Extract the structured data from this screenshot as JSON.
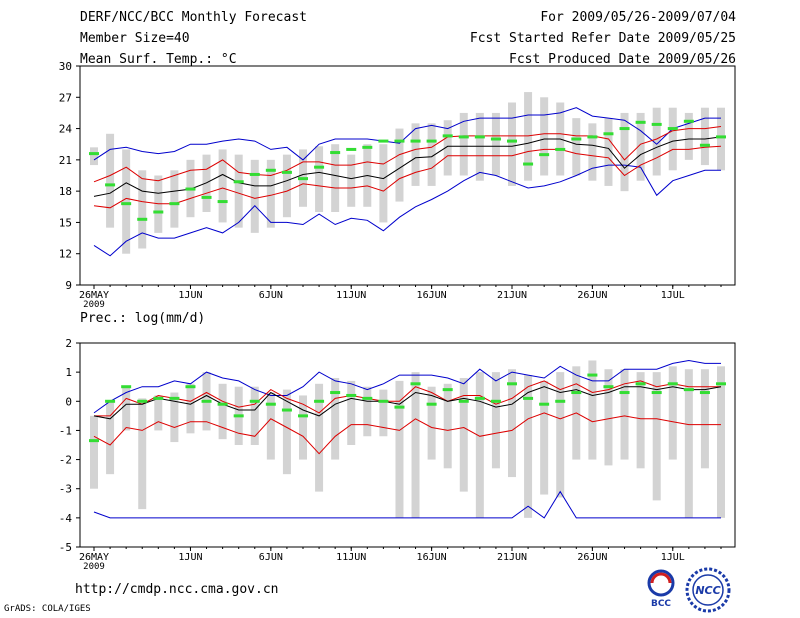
{
  "header": {
    "title": "DERF/NCC/BCC Monthly Forecast",
    "member": "Member Size=40",
    "variable": "Mean Surf. Temp.: °C",
    "period": "For 2009/05/26-2009/07/04",
    "refer": "Fcst Started Refer Date 2009/05/25",
    "produced": "Fcst Produced Date 2009/05/26"
  },
  "footer": {
    "url": "http://cmdp.ncc.cma.gov.cn",
    "grads": "GrADS: COLA/IGES"
  },
  "logos": {
    "bcc": "BCC",
    "ncc": "NCC"
  },
  "colors": {
    "max_line": "#0000cc",
    "pct_line": "#dd0000",
    "mean_line": "#000000",
    "obs": "#33dd33",
    "box": "#d3d3d3"
  },
  "chart_data": [
    {
      "type": "box-line",
      "title": "Mean Surf. Temp.: °C",
      "xtick_labels": [
        "26MAY\n2009",
        "1JUN",
        "6JUN",
        "11JUN",
        "16JUN",
        "21JUN",
        "26JUN",
        "1JUL"
      ],
      "xtick_days": [
        0,
        6,
        11,
        16,
        21,
        26,
        31,
        36
      ],
      "ylim": [
        9,
        30
      ],
      "yticks": [
        9,
        12,
        15,
        18,
        21,
        24,
        27,
        30
      ],
      "days": 40,
      "series": [
        {
          "name": "max",
          "values": [
            12.8,
            11.8,
            13.2,
            14.0,
            13.5,
            13.5,
            14.0,
            14.5,
            14.0,
            15.0,
            16.6,
            15.0,
            15.0,
            14.8,
            15.8,
            14.8,
            15.4,
            15.2,
            14.2,
            15.5,
            16.5,
            17.2,
            18.0,
            19.0,
            19.8,
            19.5,
            18.9,
            18.3,
            18.5,
            18.9,
            19.5,
            20.2,
            20.5,
            20.5,
            20.3,
            17.6,
            19.0,
            19.5,
            20.0,
            20.0
          ]
        },
        {
          "name": "upper",
          "values": [
            21.0,
            22.0,
            22.2,
            21.8,
            21.6,
            21.8,
            22.5,
            22.5,
            22.8,
            23.0,
            22.8,
            22.0,
            22.2,
            21.0,
            22.5,
            23.0,
            23.0,
            23.0,
            22.8,
            22.6,
            24.0,
            24.3,
            24.0,
            24.7,
            25.0,
            25.0,
            25.0,
            25.3,
            25.3,
            25.5,
            26.0,
            25.2,
            25.0,
            24.8,
            23.8,
            22.5,
            24.0,
            24.5,
            25.0,
            25.0
          ]
        },
        {
          "name": "p80",
          "values": [
            18.9,
            19.5,
            20.3,
            19.2,
            19.0,
            19.5,
            20.0,
            20.1,
            21.0,
            19.8,
            19.6,
            19.5,
            20.0,
            20.8,
            20.8,
            20.5,
            20.5,
            20.8,
            20.6,
            21.5,
            22.0,
            22.2,
            23.2,
            23.3,
            23.3,
            23.3,
            23.3,
            23.3,
            23.5,
            23.5,
            23.3,
            23.3,
            23.0,
            21.0,
            22.5,
            23.0,
            23.8,
            24.0,
            24.0,
            24.2
          ]
        },
        {
          "name": "mean",
          "values": [
            17.5,
            17.8,
            18.8,
            18.0,
            17.8,
            18.0,
            18.2,
            18.8,
            19.6,
            18.8,
            18.5,
            18.5,
            19.0,
            19.6,
            19.8,
            19.5,
            19.2,
            19.5,
            19.2,
            20.2,
            21.2,
            21.3,
            22.3,
            22.3,
            22.3,
            22.3,
            22.3,
            22.6,
            23.0,
            23.0,
            22.5,
            22.4,
            22.1,
            20.2,
            21.5,
            22.2,
            22.8,
            23.0,
            23.0,
            23.2
          ]
        },
        {
          "name": "p20",
          "values": [
            16.6,
            16.4,
            17.3,
            17.0,
            16.8,
            16.8,
            17.3,
            17.8,
            18.3,
            17.8,
            17.3,
            17.6,
            18.0,
            18.7,
            18.5,
            18.3,
            18.3,
            18.5,
            18.0,
            19.2,
            19.8,
            20.2,
            21.4,
            21.4,
            21.4,
            21.4,
            21.4,
            21.8,
            22.0,
            22.0,
            21.6,
            21.4,
            21.2,
            19.5,
            20.5,
            21.2,
            22.0,
            22.0,
            22.2,
            22.3
          ]
        },
        {
          "name": "obs",
          "values": [
            21.6,
            18.6,
            16.8,
            15.3,
            16.0,
            16.8,
            18.2,
            17.4,
            17.0,
            18.9,
            19.6,
            20.0,
            19.8,
            19.2,
            20.3,
            21.7,
            22.0,
            22.2,
            22.8,
            22.8,
            22.8,
            22.8,
            23.3,
            23.2,
            23.2,
            23.0,
            22.8,
            20.6,
            21.5,
            22.0,
            23.0,
            23.2,
            23.5,
            24.0,
            24.6,
            24.4,
            24.0,
            24.7,
            22.4,
            23.2
          ]
        },
        {
          "name": "box_high",
          "values": [
            22.2,
            23.5,
            22.0,
            20.0,
            19.5,
            20.0,
            21.0,
            21.5,
            22.0,
            21.5,
            21.0,
            21.0,
            21.5,
            22.0,
            22.3,
            22.5,
            21.5,
            22.5,
            22.5,
            24.0,
            24.5,
            24.5,
            24.8,
            25.5,
            25.5,
            25.5,
            26.5,
            27.5,
            27.0,
            26.5,
            25.0,
            24.5,
            25.0,
            25.5,
            25.5,
            26.0,
            26.0,
            25.5,
            26.0,
            26.0
          ]
        },
        {
          "name": "box_low",
          "values": [
            20.5,
            14.5,
            12.0,
            12.5,
            14.0,
            14.5,
            15.5,
            16.0,
            15.0,
            14.5,
            14.0,
            14.5,
            15.5,
            16.5,
            16.0,
            16.0,
            16.5,
            16.5,
            15.0,
            17.0,
            18.5,
            18.5,
            19.5,
            19.5,
            19.0,
            19.5,
            18.5,
            19.0,
            19.5,
            19.5,
            19.5,
            19.0,
            18.5,
            18.0,
            19.0,
            19.5,
            20.0,
            21.0,
            20.5,
            20.0
          ]
        }
      ]
    },
    {
      "type": "box-line",
      "title": "Prec.: log(mm/d)",
      "xtick_labels": [
        "26MAY\n2009",
        "1JUN",
        "6JUN",
        "11JUN",
        "16JUN",
        "21JUN",
        "26JUN",
        "1JUL"
      ],
      "xtick_days": [
        0,
        6,
        11,
        16,
        21,
        26,
        31,
        36
      ],
      "ylim": [
        -5,
        2
      ],
      "yticks": [
        -5,
        -4,
        -3,
        -2,
        -1,
        0,
        1,
        2
      ],
      "days": 40,
      "series": [
        {
          "name": "max",
          "values": [
            -3.8,
            -4.0,
            -4.0,
            -4.0,
            -4.0,
            -4.0,
            -4.0,
            -4.0,
            -4.0,
            -4.0,
            -4.0,
            -4.0,
            -4.0,
            -4.0,
            -4.0,
            -4.0,
            -4.0,
            -4.0,
            -4.0,
            -4.0,
            -4.0,
            -4.0,
            -4.0,
            -4.0,
            -4.0,
            -4.0,
            -4.0,
            -3.6,
            -4.0,
            -3.1,
            -4.0,
            -4.0,
            -4.0,
            -4.0,
            -4.0,
            -4.0,
            -4.0,
            -4.0,
            -4.0,
            -4.0
          ]
        },
        {
          "name": "upper",
          "values": [
            -0.4,
            0.0,
            0.3,
            0.5,
            0.5,
            0.7,
            0.6,
            1.0,
            0.8,
            0.7,
            0.4,
            0.2,
            0.2,
            0.5,
            1.0,
            0.7,
            0.6,
            0.4,
            0.6,
            0.9,
            0.9,
            0.9,
            0.8,
            0.6,
            1.1,
            0.7,
            1.0,
            0.9,
            0.8,
            1.2,
            0.9,
            0.7,
            0.7,
            1.1,
            1.1,
            1.1,
            1.3,
            1.4,
            1.3,
            1.3
          ]
        },
        {
          "name": "p80",
          "values": [
            -0.5,
            -0.5,
            0.1,
            -0.1,
            0.2,
            0.1,
            0.0,
            0.3,
            0.0,
            -0.2,
            -0.1,
            0.4,
            0.1,
            -0.1,
            -0.4,
            0.1,
            0.2,
            0.1,
            0.0,
            0.0,
            0.5,
            0.3,
            0.0,
            0.2,
            0.2,
            -0.1,
            0.1,
            0.5,
            0.7,
            0.4,
            0.6,
            0.3,
            0.4,
            0.6,
            0.7,
            0.5,
            0.6,
            0.5,
            0.5,
            0.5
          ]
        },
        {
          "name": "mean",
          "values": [
            -0.5,
            -0.6,
            -0.1,
            -0.1,
            0.1,
            0.0,
            -0.1,
            0.2,
            -0.1,
            -0.3,
            -0.3,
            0.3,
            0.0,
            -0.3,
            -0.5,
            -0.1,
            0.1,
            0.0,
            0.0,
            -0.1,
            0.3,
            0.2,
            0.0,
            0.1,
            0.0,
            -0.2,
            -0.1,
            0.3,
            0.5,
            0.3,
            0.4,
            0.2,
            0.3,
            0.5,
            0.5,
            0.4,
            0.5,
            0.4,
            0.4,
            0.5
          ]
        },
        {
          "name": "p20",
          "values": [
            -1.2,
            -1.5,
            -0.9,
            -1.0,
            -0.7,
            -0.9,
            -0.7,
            -0.7,
            -0.9,
            -1.1,
            -1.2,
            -0.6,
            -0.9,
            -1.2,
            -1.8,
            -1.2,
            -0.8,
            -0.8,
            -0.9,
            -1.0,
            -0.6,
            -0.9,
            -1.0,
            -0.9,
            -1.2,
            -1.1,
            -1.0,
            -0.6,
            -0.4,
            -0.6,
            -0.4,
            -0.7,
            -0.6,
            -0.5,
            -0.6,
            -0.6,
            -0.7,
            -0.8,
            -0.8,
            -0.8
          ]
        },
        {
          "name": "obs",
          "values": [
            -1.35,
            0.0,
            0.5,
            0.0,
            0.1,
            0.1,
            0.5,
            0.0,
            -0.1,
            -0.5,
            0.0,
            -0.1,
            -0.3,
            -0.5,
            0.0,
            0.3,
            0.2,
            0.1,
            0.0,
            -0.2,
            0.6,
            -0.1,
            0.4,
            0.0,
            0.1,
            0.0,
            0.6,
            0.1,
            -0.1,
            0.0,
            0.3,
            0.9,
            0.5,
            0.3,
            0.6,
            0.3,
            0.6,
            0.4,
            0.3,
            0.6
          ]
        },
        {
          "name": "box_high",
          "values": [
            -0.5,
            0.0,
            0.5,
            0.1,
            0.2,
            0.3,
            0.6,
            1.0,
            0.6,
            0.5,
            0.5,
            0.3,
            0.4,
            0.2,
            0.6,
            0.8,
            0.7,
            0.5,
            0.4,
            0.7,
            1.0,
            0.5,
            0.6,
            0.8,
            1.0,
            1.0,
            1.1,
            0.9,
            0.7,
            1.0,
            1.2,
            1.4,
            1.1,
            1.1,
            1.0,
            1.0,
            1.2,
            1.1,
            1.1,
            1.2
          ]
        },
        {
          "name": "box_low",
          "values": [
            -3.0,
            -2.5,
            -1.0,
            -3.7,
            -1.0,
            -1.4,
            -1.1,
            -1.0,
            -1.3,
            -1.5,
            -1.5,
            -2.0,
            -2.5,
            -2.0,
            -3.1,
            -2.0,
            -1.5,
            -1.2,
            -1.2,
            -4.0,
            -4.0,
            -2.0,
            -2.3,
            -3.1,
            -4.0,
            -2.3,
            -2.6,
            -4.0,
            -3.2,
            -3.3,
            -2.0,
            -2.0,
            -2.2,
            -2.0,
            -2.3,
            -3.4,
            -2.0,
            -4.0,
            -2.3,
            -4.0
          ]
        }
      ]
    }
  ],
  "panel2_label": "Prec.: log(mm/d)"
}
